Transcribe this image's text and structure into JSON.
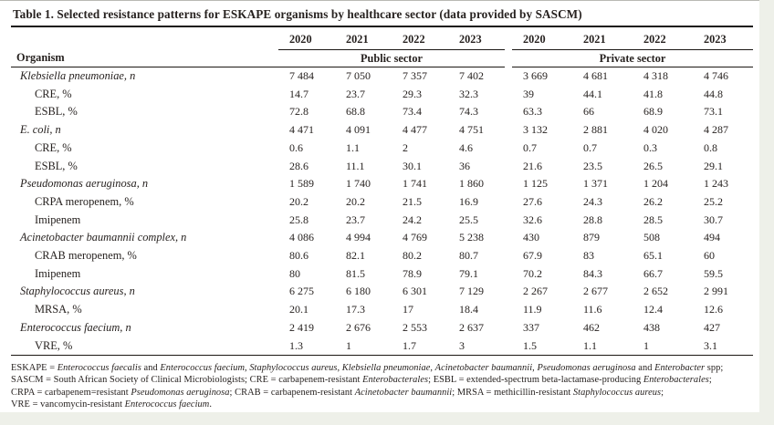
{
  "title": "Table 1. Selected resistance patterns for ESKAPE organisms by healthcare sector (data provided by SASCM)",
  "table": {
    "organism_header": "Organism",
    "year_headers": [
      "2020",
      "2021",
      "2022",
      "2023"
    ],
    "sectors": [
      "Public sector",
      "Private sector"
    ],
    "rows": [
      {
        "label": "Klebsiella pneumoniae, n",
        "italic": true,
        "indent": false,
        "public": [
          "7 484",
          "7 050",
          "7 357",
          "7 402"
        ],
        "private": [
          "3 669",
          "4 681",
          "4 318",
          "4 746"
        ]
      },
      {
        "label": "CRE, %",
        "italic": false,
        "indent": true,
        "public": [
          "14.7",
          "23.7",
          "29.3",
          "32.3"
        ],
        "private": [
          "39",
          "44.1",
          "41.8",
          "44.8"
        ]
      },
      {
        "label": "ESBL, %",
        "italic": false,
        "indent": true,
        "public": [
          "72.8",
          "68.8",
          "73.4",
          "74.3"
        ],
        "private": [
          "63.3",
          "66",
          "68.9",
          "73.1"
        ]
      },
      {
        "label": "E. coli, n",
        "italic": true,
        "indent": false,
        "public": [
          "4 471",
          "4 091",
          "4 477",
          "4 751"
        ],
        "private": [
          "3 132",
          "2 881",
          "4 020",
          "4 287"
        ]
      },
      {
        "label": "CRE, %",
        "italic": false,
        "indent": true,
        "public": [
          "0.6",
          "1.1",
          "2",
          "4.6"
        ],
        "private": [
          "0.7",
          "0.7",
          "0.3",
          "0.8"
        ]
      },
      {
        "label": "ESBL, %",
        "italic": false,
        "indent": true,
        "public": [
          "28.6",
          "11.1",
          "30.1",
          "36"
        ],
        "private": [
          "21.6",
          "23.5",
          "26.5",
          "29.1"
        ]
      },
      {
        "label": "Pseudomonas aeruginosa, n",
        "italic": true,
        "indent": false,
        "public": [
          "1 589",
          "1 740",
          "1 741",
          "1 860"
        ],
        "private": [
          "1 125",
          "1 371",
          "1 204",
          "1 243"
        ]
      },
      {
        "label": "CRPA meropenem, %",
        "italic": false,
        "indent": true,
        "public": [
          "20.2",
          "20.2",
          "21.5",
          "16.9"
        ],
        "private": [
          "27.6",
          "24.3",
          "26.2",
          "25.2"
        ]
      },
      {
        "label": "Imipenem",
        "italic": false,
        "indent": true,
        "public": [
          "25.8",
          "23.7",
          "24.2",
          "25.5"
        ],
        "private": [
          "32.6",
          "28.8",
          "28.5",
          "30.7"
        ]
      },
      {
        "label": "Acinetobacter baumannii complex, n",
        "italic": true,
        "indent": false,
        "public": [
          "4 086",
          "4 994",
          "4 769",
          "5 238"
        ],
        "private": [
          "430",
          "879",
          "508",
          "494"
        ]
      },
      {
        "label": "CRAB meropenem, %",
        "italic": false,
        "indent": true,
        "public": [
          "80.6",
          "82.1",
          "80.2",
          "80.7"
        ],
        "private": [
          "67.9",
          "83",
          "65.1",
          "60"
        ]
      },
      {
        "label": "Imipenem",
        "italic": false,
        "indent": true,
        "public": [
          "80",
          "81.5",
          "78.9",
          "79.1"
        ],
        "private": [
          "70.2",
          "84.3",
          "66.7",
          "59.5"
        ]
      },
      {
        "label": "Staphylococcus aureus, n",
        "italic": true,
        "indent": false,
        "public": [
          "6 275",
          "6 180",
          "6 301",
          "7 129"
        ],
        "private": [
          "2 267",
          "2 677",
          "2 652",
          "2 991"
        ]
      },
      {
        "label": "MRSA, %",
        "italic": false,
        "indent": true,
        "public": [
          "20.1",
          "17.3",
          "17",
          "18.4"
        ],
        "private": [
          "11.9",
          "11.6",
          "12.4",
          "12.6"
        ]
      },
      {
        "label": "Enterococcus faecium, n",
        "italic": true,
        "indent": false,
        "public": [
          "2 419",
          "2 676",
          "2 553",
          "2 637"
        ],
        "private": [
          "337",
          "462",
          "438",
          "427"
        ]
      },
      {
        "label": "VRE, %",
        "italic": false,
        "indent": true,
        "public": [
          "1.3",
          "1",
          "1.7",
          "3"
        ],
        "private": [
          "1.5",
          "1.1",
          "1",
          "3.1"
        ]
      }
    ]
  },
  "footnotes": [
    [
      {
        "t": "ESKAPE = "
      },
      {
        "t": "Enterococcus faecalis",
        "i": true
      },
      {
        "t": " and "
      },
      {
        "t": "Enterococcus faecium",
        "i": true
      },
      {
        "t": ", "
      },
      {
        "t": "Staphylococcus aureus",
        "i": true
      },
      {
        "t": ", "
      },
      {
        "t": "Klebsiella pneumoniae",
        "i": true
      },
      {
        "t": ", "
      },
      {
        "t": "Acinetobacter baumannii",
        "i": true
      },
      {
        "t": ", "
      },
      {
        "t": "Pseudomonas aeruginosa",
        "i": true
      },
      {
        "t": " and "
      },
      {
        "t": "Enterobacter",
        "i": true
      },
      {
        "t": " spp;"
      }
    ],
    [
      {
        "t": "SASCM = South African Society of Clinical Microbiologists; CRE = carbapenem-resistant "
      },
      {
        "t": "Enterobacterales",
        "i": true
      },
      {
        "t": "; ESBL = extended-spectrum beta-lactamase-producing "
      },
      {
        "t": "Enterobacterales",
        "i": true
      },
      {
        "t": ";"
      }
    ],
    [
      {
        "t": "CRPA = carbapenem=resistant "
      },
      {
        "t": "Pseudomonas aeruginosa",
        "i": true
      },
      {
        "t": "; CRAB = carbapenem-resistant "
      },
      {
        "t": "Acinetobacter baumannii",
        "i": true
      },
      {
        "t": "; MRSA = methicillin-resistant "
      },
      {
        "t": "Staphylococcus aureus",
        "i": true
      },
      {
        "t": ";"
      }
    ],
    [
      {
        "t": "VRE = vancomycin-resistant "
      },
      {
        "t": "Enterococcus faecium",
        "i": true
      },
      {
        "t": "."
      }
    ]
  ]
}
